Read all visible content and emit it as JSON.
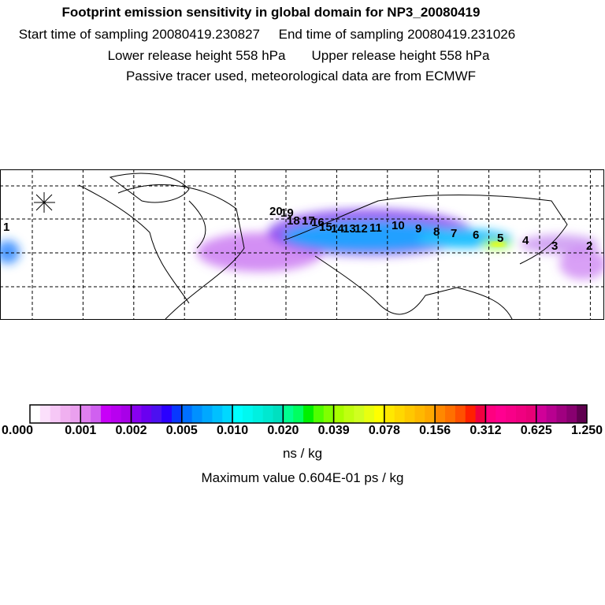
{
  "header": {
    "title": "Footprint emission sensitivity in global domain for NP3_20080419",
    "start": "Start time of sampling 20080419.230827",
    "end": "End time of sampling 20080419.231026",
    "lower": "Lower release height  558 hPa",
    "upper": "Upper release height  558 hPa",
    "note": "Passive tracer used, meteorological data are from ECMWF"
  },
  "chart_data": {
    "type": "heatmap",
    "title": "Footprint emission sensitivity in global domain for NP3_20080419",
    "colorbar": {
      "ticks": [
        "0.000",
        "0.001",
        "0.002",
        "0.005",
        "0.010",
        "0.020",
        "0.039",
        "0.078",
        "0.156",
        "0.312",
        "0.625",
        "1.250"
      ],
      "segment_colors": [
        [
          "#ffffff",
          "#fbe0fb",
          "#f6c8f6",
          "#f0b0f0",
          "#eaa0ee"
        ],
        [
          "#e080f0",
          "#d060f0",
          "#c800f8",
          "#b800f0",
          "#a800e8"
        ],
        [
          "#8800f0",
          "#6a00f0",
          "#4c10f0",
          "#2a00ff",
          "#0838ff"
        ],
        [
          "#0070ff",
          "#0090ff",
          "#00a8ff",
          "#00c0ff",
          "#00d8ff"
        ],
        [
          "#00ffff",
          "#00f8f0",
          "#00f0e0",
          "#00e8d0",
          "#00e0c0"
        ],
        [
          "#00ff90",
          "#00ff60",
          "#00f000",
          "#50ff00",
          "#80ff00"
        ],
        [
          "#a8ff00",
          "#c0ff10",
          "#d0ff20",
          "#e8ff10",
          "#ffff00"
        ],
        [
          "#ffe800",
          "#ffd800",
          "#ffc800",
          "#ffb800",
          "#ffa800"
        ],
        [
          "#ff8800",
          "#ff7000",
          "#ff5000",
          "#ff2000",
          "#f00040"
        ],
        [
          "#ff0080",
          "#ff0090",
          "#f80088",
          "#f00080",
          "#e80078"
        ],
        [
          "#d00098",
          "#b80090",
          "#a00080",
          "#880070",
          "#600050"
        ]
      ],
      "unit": "ns / kg",
      "max_text": "Maximum value  0.604E-01 ps / kg"
    },
    "trajectory_labels": [
      "20",
      "19",
      "18",
      "17",
      "16",
      "15",
      "14",
      "13",
      "12",
      "11",
      "10",
      "9",
      "8",
      "7",
      "6",
      "5",
      "4",
      "3",
      "2",
      "1"
    ]
  }
}
